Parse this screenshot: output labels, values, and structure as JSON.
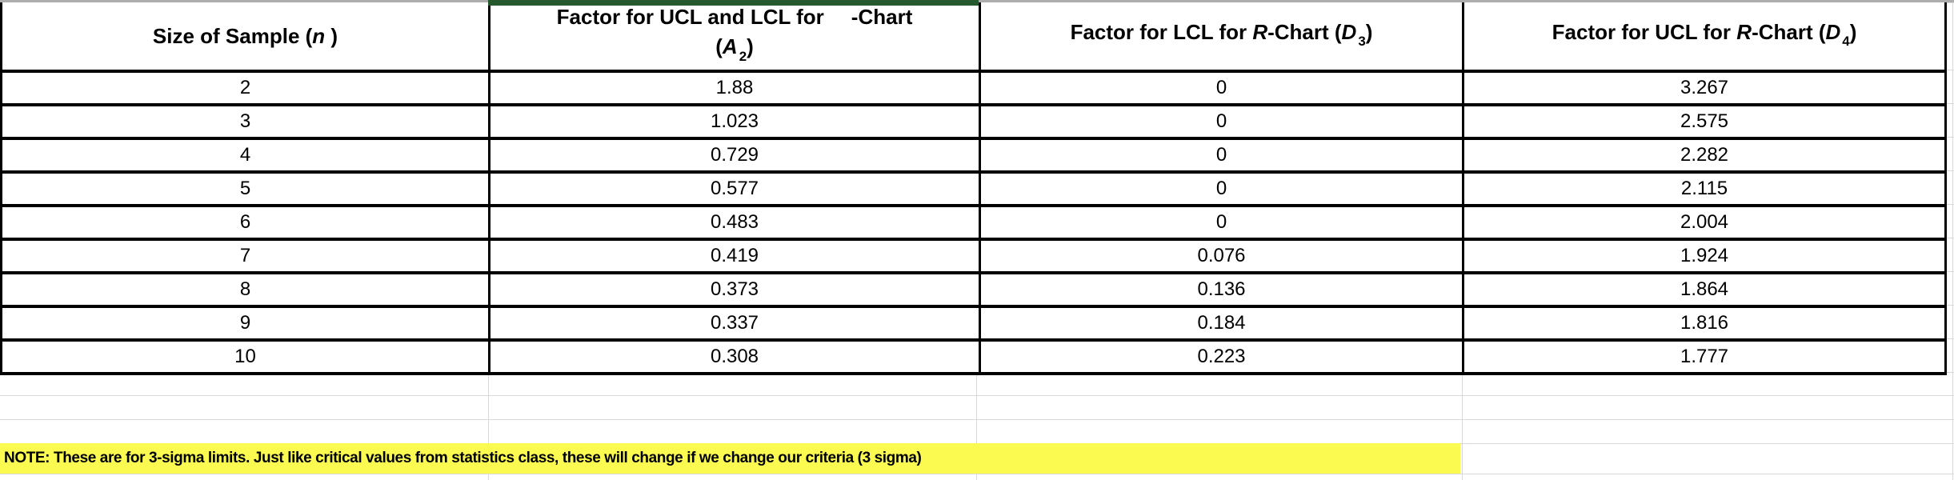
{
  "table": {
    "columns": [
      {
        "id": "n",
        "header": [
          {
            "t": "Size of Sample ("
          },
          {
            "t": "n",
            "italic": true
          },
          {
            "t": " )"
          }
        ]
      },
      {
        "id": "a2",
        "header": [
          {
            "t": "Factor for UCL and LCL for"
          },
          {
            "gap": true
          },
          {
            "t": "-Chart"
          },
          {
            "br": true
          },
          {
            "t": "("
          },
          {
            "t": "A",
            "italic": true
          },
          {
            "t": "2",
            "sub": true
          },
          {
            "t": ")"
          }
        ]
      },
      {
        "id": "d3",
        "header": [
          {
            "t": "Factor for LCL for "
          },
          {
            "t": "R",
            "italic": true
          },
          {
            "t": "-Chart ("
          },
          {
            "t": "D",
            "italic": true
          },
          {
            "t": "3",
            "sub": true
          },
          {
            "t": ")"
          }
        ]
      },
      {
        "id": "d4",
        "header": [
          {
            "t": "Factor for UCL for "
          },
          {
            "t": "R",
            "italic": true
          },
          {
            "t": "-Chart ("
          },
          {
            "t": "D",
            "italic": true
          },
          {
            "t": "4",
            "sub": true
          },
          {
            "t": ")"
          }
        ]
      }
    ],
    "rows": [
      {
        "n": "2",
        "a2": "1.88",
        "d3": "0",
        "d4": "3.267"
      },
      {
        "n": "3",
        "a2": "1.023",
        "d3": "0",
        "d4": "2.575"
      },
      {
        "n": "4",
        "a2": "0.729",
        "d3": "0",
        "d4": "2.282"
      },
      {
        "n": "5",
        "a2": "0.577",
        "d3": "0",
        "d4": "2.115"
      },
      {
        "n": "6",
        "a2": "0.483",
        "d3": "0",
        "d4": "2.004"
      },
      {
        "n": "7",
        "a2": "0.419",
        "d3": "0.076",
        "d4": "1.924"
      },
      {
        "n": "8",
        "a2": "0.373",
        "d3": "0.136",
        "d4": "1.864"
      },
      {
        "n": "9",
        "a2": "0.337",
        "d3": "0.184",
        "d4": "1.816"
      },
      {
        "n": "10",
        "a2": "0.308",
        "d3": "0.223",
        "d4": "1.777"
      }
    ]
  },
  "note": {
    "text": "NOTE: These are for 3-sigma limits. Just like critical values from statistics class, these will change if we change our criteria (3 sigma)"
  },
  "colors": {
    "border": "#000000",
    "gridline": "#d8d8d8",
    "note_bg": "#fbfa50",
    "selection_green": "#27592f",
    "top_strip_gray": "#adadad"
  }
}
